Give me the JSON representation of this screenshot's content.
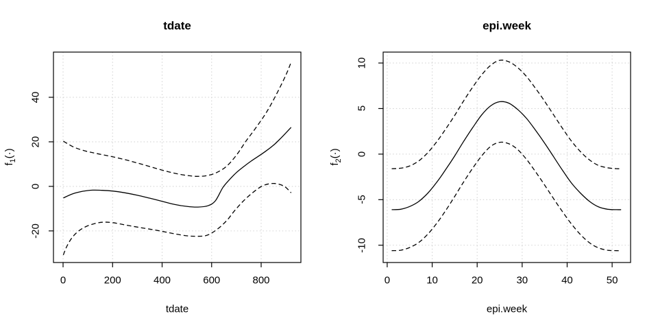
{
  "figure": {
    "background": "#ffffff",
    "foreground": "#000000",
    "grid_color": "#d3d3d3"
  },
  "chart_data": [
    {
      "type": "line",
      "title": "tdate",
      "xlabel": "tdate",
      "ylabel": "f1(.)",
      "ylabel_parts": {
        "base": "f",
        "sub": "1",
        "rest": "(·)"
      },
      "xlim": [
        -38.8,
        960.5
      ],
      "ylim": [
        -34.2,
        60.3
      ],
      "xticks": [
        0,
        200,
        400,
        600,
        800
      ],
      "yticks": [
        -20,
        0,
        20,
        40
      ],
      "grid": true,
      "legend_position": "none",
      "series": [
        {
          "name": "fit",
          "style": "solid",
          "x": [
            1,
            40,
            80,
            120,
            160,
            200,
            250,
            300,
            350,
            400,
            450,
            500,
            545,
            585,
            615,
            645,
            672,
            700,
            730,
            760,
            790,
            820,
            850,
            880,
            921
          ],
          "y": [
            -5.2,
            -3.3,
            -2.2,
            -1.7,
            -1.8,
            -2.1,
            -2.9,
            -4.0,
            -5.3,
            -6.7,
            -8.1,
            -9.0,
            -9.3,
            -8.7,
            -6.5,
            -0.6,
            3.0,
            6.2,
            8.9,
            11.4,
            13.6,
            15.9,
            18.5,
            21.7,
            26.5
          ]
        },
        {
          "name": "upper-ci",
          "style": "dashed",
          "x": [
            1,
            40,
            80,
            120,
            160,
            200,
            250,
            300,
            350,
            400,
            450,
            500,
            540,
            580,
            620,
            660,
            700,
            740,
            780,
            820,
            860,
            900,
            921
          ],
          "y": [
            20.3,
            17.8,
            16.2,
            15.1,
            14.2,
            13.3,
            12.0,
            10.5,
            8.9,
            7.3,
            5.9,
            4.9,
            4.5,
            4.8,
            6.2,
            9.0,
            14.0,
            20.5,
            26.5,
            33.0,
            41.0,
            50.0,
            55.8
          ]
        },
        {
          "name": "lower-ci",
          "style": "dashed",
          "x": [
            1,
            15,
            35,
            60,
            90,
            125,
            160,
            200,
            250,
            300,
            350,
            400,
            450,
            500,
            540,
            580,
            620,
            660,
            690,
            720,
            750,
            780,
            805,
            830,
            855,
            880,
            900,
            921
          ],
          "y": [
            -30.8,
            -27.0,
            -23.2,
            -20.3,
            -18.2,
            -16.8,
            -16.1,
            -16.3,
            -17.3,
            -18.3,
            -19.2,
            -20.2,
            -21.3,
            -22.2,
            -22.4,
            -22.0,
            -19.5,
            -15.5,
            -11.3,
            -7.5,
            -4.3,
            -1.6,
            0.2,
            1.1,
            1.3,
            0.7,
            -0.5,
            -2.9
          ]
        }
      ]
    },
    {
      "type": "line",
      "title": "epi.week",
      "xlabel": "epi.week",
      "ylabel": "f2(.)",
      "ylabel_parts": {
        "base": "f",
        "sub": "2",
        "rest": "(·)"
      },
      "xlim": [
        -0.9,
        54.1
      ],
      "ylim": [
        -11.9,
        11.2
      ],
      "xticks": [
        0,
        10,
        20,
        30,
        40,
        50
      ],
      "yticks": [
        -10,
        -5,
        0,
        5,
        10
      ],
      "grid": true,
      "legend_position": "none",
      "series": [
        {
          "name": "fit",
          "style": "solid",
          "x": [
            1,
            3,
            5,
            7,
            9,
            11,
            13,
            15,
            17,
            19,
            21,
            23,
            25,
            27,
            29,
            31,
            33,
            35,
            37,
            39,
            41,
            43,
            45,
            47,
            49,
            51,
            52
          ],
          "y": [
            -6.1,
            -6.05,
            -5.75,
            -5.2,
            -4.3,
            -3.1,
            -1.7,
            -0.2,
            1.4,
            2.9,
            4.3,
            5.3,
            5.75,
            5.6,
            4.9,
            3.9,
            2.6,
            1.2,
            -0.3,
            -1.8,
            -3.2,
            -4.3,
            -5.2,
            -5.8,
            -6.05,
            -6.1,
            -6.1
          ]
        },
        {
          "name": "upper-ci",
          "style": "dashed",
          "x": [
            1,
            3,
            5,
            7,
            9,
            11,
            13,
            15,
            17,
            19,
            21,
            23,
            25,
            27,
            29,
            31,
            33,
            35,
            37,
            39,
            41,
            43,
            45,
            47,
            49,
            51,
            52
          ],
          "y": [
            -1.6,
            -1.55,
            -1.3,
            -0.75,
            0.15,
            1.35,
            2.75,
            4.25,
            5.85,
            7.35,
            8.7,
            9.75,
            10.3,
            10.15,
            9.5,
            8.5,
            7.2,
            5.8,
            4.3,
            2.8,
            1.4,
            0.25,
            -0.65,
            -1.25,
            -1.5,
            -1.6,
            -1.6
          ]
        },
        {
          "name": "lower-ci",
          "style": "dashed",
          "x": [
            1,
            3,
            5,
            7,
            9,
            11,
            13,
            15,
            17,
            19,
            21,
            23,
            25,
            27,
            29,
            31,
            33,
            35,
            37,
            39,
            41,
            43,
            45,
            47,
            49,
            51,
            52
          ],
          "y": [
            -10.6,
            -10.55,
            -10.25,
            -9.7,
            -8.8,
            -7.6,
            -6.2,
            -4.65,
            -3.05,
            -1.55,
            -0.2,
            0.85,
            1.3,
            1.15,
            0.5,
            -0.6,
            -1.95,
            -3.4,
            -4.9,
            -6.35,
            -7.7,
            -8.85,
            -9.75,
            -10.3,
            -10.55,
            -10.6,
            -10.6
          ]
        }
      ]
    }
  ]
}
